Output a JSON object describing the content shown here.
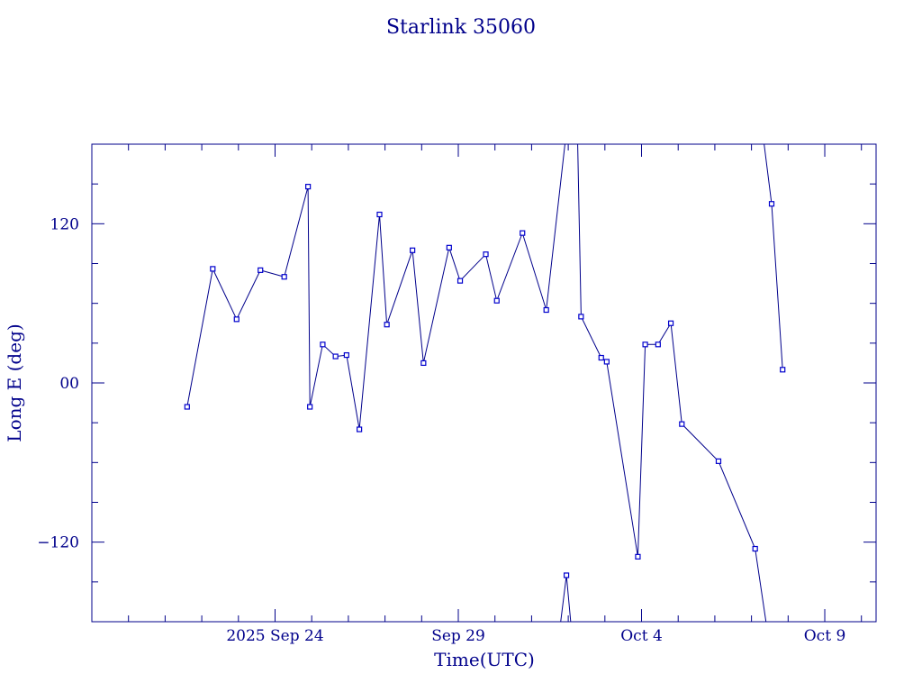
{
  "chart_data": {
    "type": "line",
    "title": "Starlink 35060",
    "xlabel": "Time(UTC)",
    "ylabel": "Long E (deg)",
    "x_axis": {
      "unit": "days",
      "origin_date": "2025-09-19",
      "range": [
        0.0,
        21.4
      ],
      "tick_labels": [
        {
          "value": 5,
          "label": "2025 Sep 24"
        },
        {
          "value": 10,
          "label": "Sep 29"
        },
        {
          "value": 15,
          "label": "Oct  4"
        },
        {
          "value": 20,
          "label": "Oct  9"
        }
      ]
    },
    "y_axis": {
      "range": [
        -180,
        180
      ],
      "tick_labels": [
        {
          "value": 120,
          "label": "120"
        },
        {
          "value": 0,
          "label": "00"
        },
        {
          "value": -120,
          "label": "−120"
        }
      ]
    },
    "segments": [
      [
        [
          2.6,
          -18
        ],
        [
          3.3,
          86
        ],
        [
          3.95,
          48
        ],
        [
          4.6,
          85
        ],
        [
          5.25,
          80
        ],
        [
          5.9,
          148
        ],
        [
          5.95,
          -18
        ],
        [
          6.3,
          29
        ],
        [
          6.65,
          20
        ],
        [
          6.95,
          21
        ],
        [
          7.3,
          -35
        ],
        [
          7.85,
          127
        ],
        [
          8.05,
          44
        ],
        [
          8.75,
          100
        ],
        [
          9.05,
          15
        ],
        [
          9.75,
          102
        ],
        [
          10.05,
          77
        ],
        [
          10.75,
          97
        ],
        [
          11.05,
          62
        ],
        [
          11.75,
          113
        ],
        [
          12.4,
          55
        ],
        [
          12.95,
          190
        ]
      ],
      [
        [
          12.75,
          -190
        ],
        [
          12.95,
          -145
        ],
        [
          13.1,
          -190
        ]
      ],
      [
        [
          13.25,
          190
        ],
        [
          13.35,
          50
        ],
        [
          13.9,
          19
        ],
        [
          14.05,
          16
        ],
        [
          14.9,
          -131
        ],
        [
          15.1,
          29
        ],
        [
          15.45,
          29
        ],
        [
          15.8,
          45
        ],
        [
          16.1,
          -31
        ],
        [
          17.1,
          -59
        ],
        [
          18.1,
          -125
        ],
        [
          18.45,
          -190
        ]
      ],
      [
        [
          18.3,
          190
        ],
        [
          18.55,
          135
        ],
        [
          18.85,
          10
        ]
      ]
    ],
    "grid": false,
    "legend": "none"
  }
}
